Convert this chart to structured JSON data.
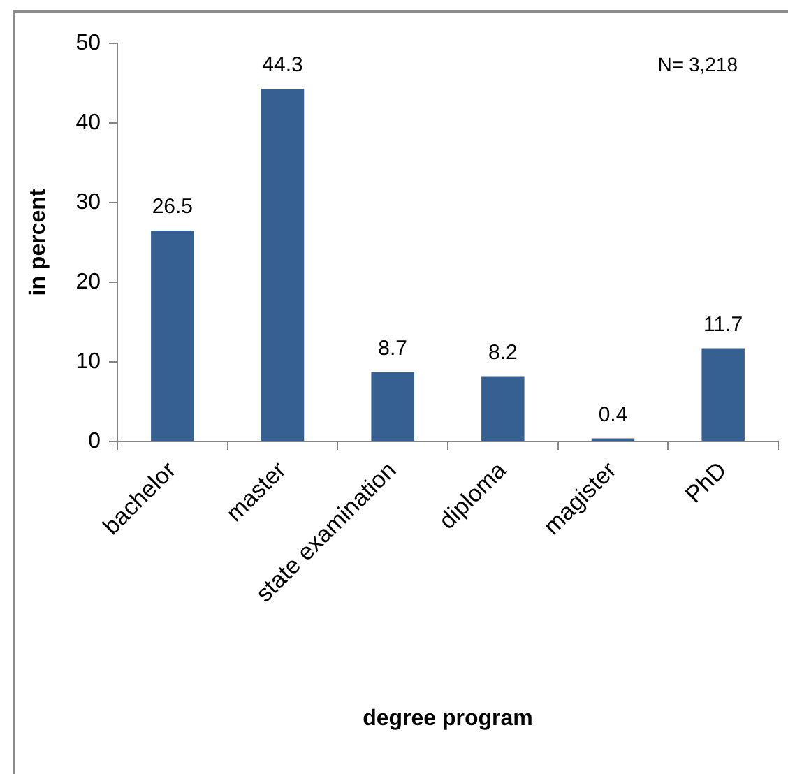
{
  "chart_data": {
    "type": "bar",
    "categories": [
      "bachelor",
      "master",
      "state examination",
      "diploma",
      "magister",
      "PhD"
    ],
    "values": [
      26.5,
      44.3,
      8.7,
      8.2,
      0.4,
      11.7
    ],
    "color": "#376092",
    "xlabel": "degree program",
    "ylabel": "in percent",
    "ylim": [
      0,
      50
    ],
    "yticks": [
      0,
      10,
      20,
      30,
      40,
      50
    ],
    "grid": false,
    "legend": false,
    "data_labels": true,
    "annotations": [
      "N= 3,218"
    ]
  }
}
